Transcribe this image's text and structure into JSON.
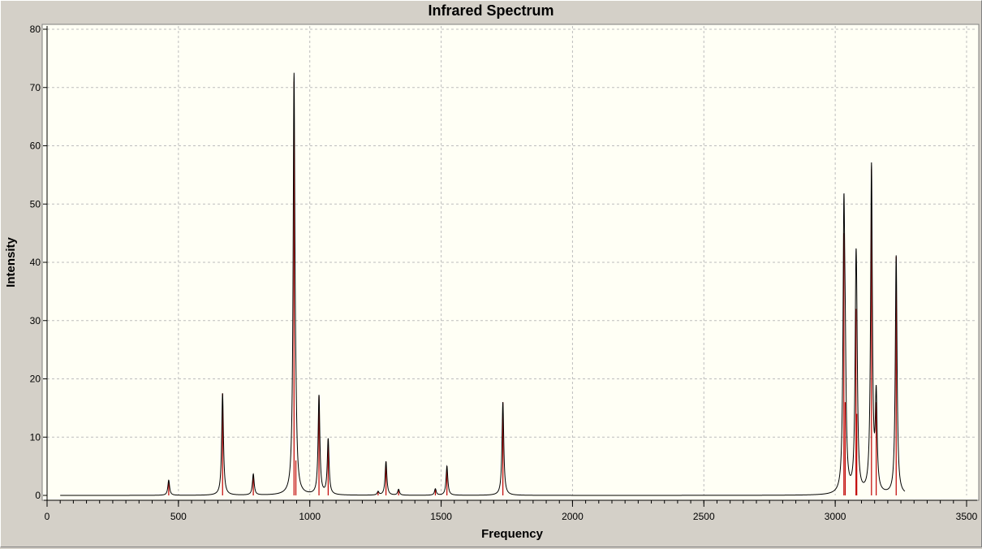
{
  "window": {
    "colors": {
      "background": "#d4d0c8",
      "plot_background": "#fffff5",
      "grid": "#bdbdbd",
      "spectrum": "#000000",
      "stick": "#c00000"
    }
  },
  "chart_data": {
    "type": "line",
    "title": "Infrared Spectrum",
    "xlabel": "Frequency",
    "ylabel": "Intensity",
    "xlim": [
      0,
      3500
    ],
    "ylim": [
      0,
      80
    ],
    "x_ticks": [
      0,
      500,
      1000,
      1500,
      2000,
      2500,
      3000,
      3500
    ],
    "y_ticks": [
      0,
      10,
      20,
      30,
      40,
      50,
      60,
      70,
      80
    ],
    "grid": true,
    "spectrum_range": [
      50,
      3265
    ],
    "peaks": [
      {
        "x": 463,
        "y": 2.6
      },
      {
        "x": 668,
        "y": 17.5
      },
      {
        "x": 785,
        "y": 3.6
      },
      {
        "x": 940,
        "y": 71
      },
      {
        "x": 947,
        "y": 6
      },
      {
        "x": 1035,
        "y": 17
      },
      {
        "x": 1070,
        "y": 9.5
      },
      {
        "x": 1260,
        "y": 0.6
      },
      {
        "x": 1290,
        "y": 5.8
      },
      {
        "x": 1338,
        "y": 1.0
      },
      {
        "x": 1478,
        "y": 1.1
      },
      {
        "x": 1522,
        "y": 5
      },
      {
        "x": 1735,
        "y": 16
      },
      {
        "x": 3033,
        "y": 45
      },
      {
        "x": 3038,
        "y": 16
      },
      {
        "x": 3079,
        "y": 32
      },
      {
        "x": 3082,
        "y": 14
      },
      {
        "x": 3138,
        "y": 56
      },
      {
        "x": 3156,
        "y": 16
      },
      {
        "x": 3232,
        "y": 41
      }
    ]
  }
}
